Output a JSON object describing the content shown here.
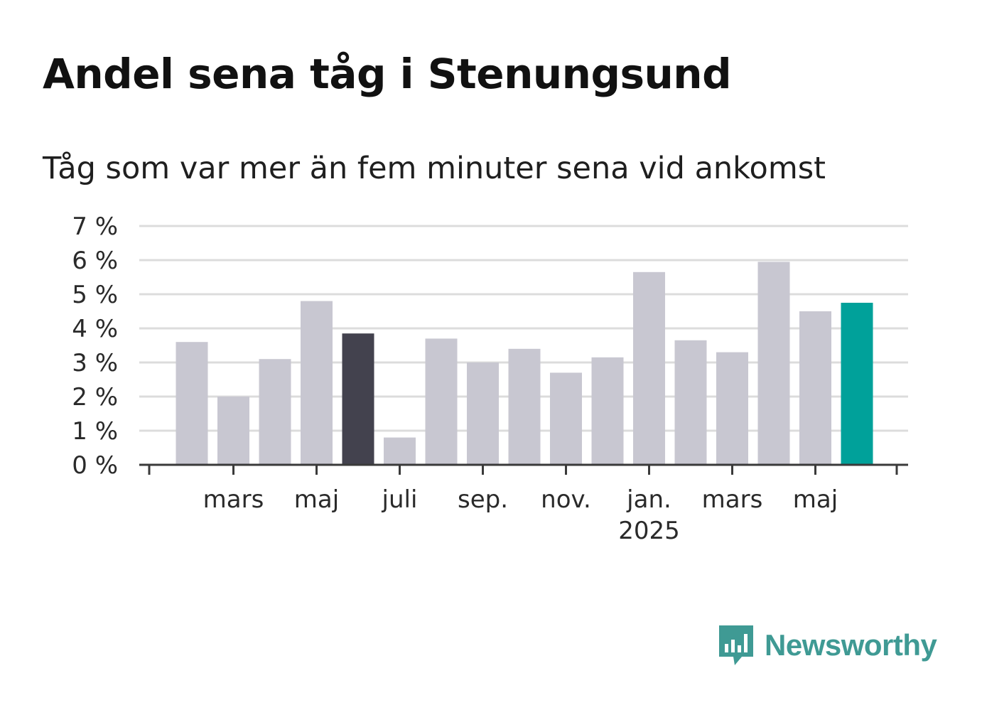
{
  "title": "Andel sena tåg i Stenungsund",
  "subtitle": "Tåg som var mer än fem minuter sena vid ankomst",
  "brand": {
    "name": "Newsworthy",
    "icon": "newsworthy-logo-icon",
    "color": "#3f9a94"
  },
  "chart_data": {
    "type": "bar",
    "y_tick_labels": [
      "0 %",
      "1 %",
      "2 %",
      "3 %",
      "4 %",
      "5 %",
      "6 %",
      "7 %"
    ],
    "ylim": [
      0,
      7
    ],
    "grid": true,
    "x_tick_labels": [
      "mars",
      "maj",
      "juli",
      "sep.",
      "nov.",
      "jan.\n2025",
      "mars",
      "maj"
    ],
    "categories": [
      "2024-02",
      "2024-03",
      "2024-04",
      "2024-05",
      "2024-06",
      "2024-07",
      "2024-08",
      "2024-09",
      "2024-10",
      "2024-11",
      "2024-12",
      "2025-01",
      "2025-02",
      "2025-03",
      "2025-04",
      "2025-05",
      "2025-06"
    ],
    "values": [
      3.6,
      2.0,
      3.1,
      4.8,
      3.85,
      0.8,
      3.7,
      3.0,
      3.4,
      2.7,
      3.15,
      5.65,
      3.65,
      3.3,
      5.95,
      4.5,
      4.75
    ],
    "colors": {
      "default": "#c8c7d1",
      "highlight": "#43424e",
      "latest": "#00a19a",
      "grid": "#dcdcdc",
      "axis": "#3a3a3a"
    },
    "highlight_category": "2024-06",
    "latest_category": "2025-06"
  }
}
